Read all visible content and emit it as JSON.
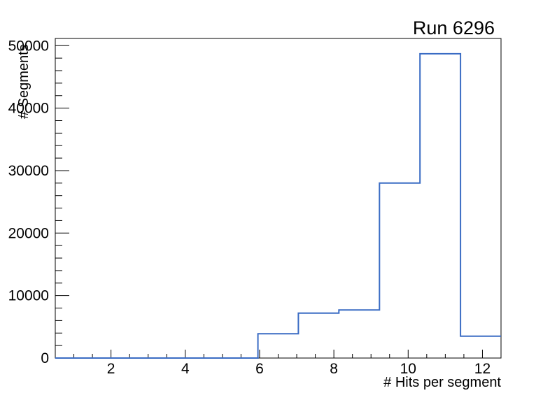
{
  "chart_data": {
    "type": "bar",
    "subtype": "step-histogram",
    "title": "Run 6296",
    "xlabel": "# Hits per segment",
    "ylabel": "# Segments",
    "bin_edges": [
      0.5,
      1.591,
      2.682,
      3.773,
      4.864,
      5.955,
      7.045,
      8.136,
      9.227,
      10.318,
      11.409,
      12.5
    ],
    "values": [
      0,
      0,
      0,
      0,
      0,
      3900,
      7200,
      7700,
      28000,
      48700,
      3500
    ],
    "xlim": [
      0.5,
      12.5
    ],
    "ylim": [
      0,
      51150
    ],
    "x_major_ticks": [
      2,
      4,
      6,
      8,
      10,
      12
    ],
    "x_major_tick_labels": [
      "2",
      "4",
      "6",
      "8",
      "10",
      "12"
    ],
    "x_minor_tick_step": 0.5,
    "y_major_ticks": [
      0,
      10000,
      20000,
      30000,
      40000,
      50000
    ],
    "y_major_tick_labels": [
      "0",
      "10000",
      "20000",
      "30000",
      "40000",
      "50000"
    ],
    "y_minor_tick_step": 2000,
    "grid": false,
    "line_color": "#3a6cc4",
    "frame_color": "#000000",
    "background_color": "#ffffff"
  }
}
